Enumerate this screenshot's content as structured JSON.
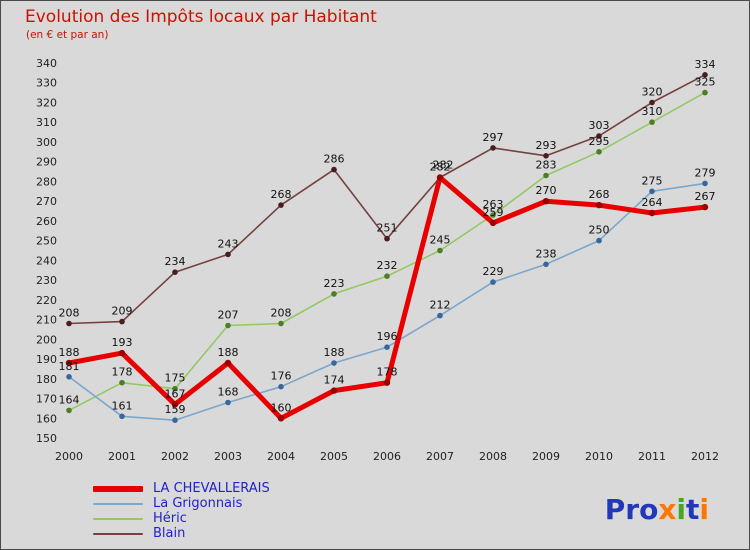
{
  "title": "Evolution des Impôts locaux par Habitant",
  "subtitle": "(en € et par an)",
  "colors": {
    "background": "#d9d9d9",
    "title": "#cc1100",
    "subtitle": "#cc1100",
    "legend_text": "#2222cc",
    "tick_text": "#222222",
    "value_label": "#111111"
  },
  "chart_data": {
    "type": "line",
    "x": [
      "2000",
      "2001",
      "2002",
      "2003",
      "2004",
      "2005",
      "2006",
      "2007",
      "2008",
      "2009",
      "2010",
      "2011",
      "2012"
    ],
    "ylim": [
      150,
      340
    ],
    "ytick_step": 10,
    "grid": false,
    "legend_position": "bottom-left",
    "series": [
      {
        "name": "LA CHEVALLERAIS",
        "color": "#e80000",
        "marker_color": "#9a0000",
        "line_width": 5,
        "values": [
          188,
          193,
          167,
          188,
          160,
          174,
          178,
          282,
          259,
          270,
          268,
          264,
          267
        ]
      },
      {
        "name": "La Grigonnais",
        "color": "#7aa7cc",
        "marker_color": "#39679b",
        "line_width": 1.6,
        "values": [
          181,
          161,
          159,
          168,
          176,
          188,
          196,
          212,
          229,
          238,
          250,
          275,
          279
        ]
      },
      {
        "name": "Héric",
        "color": "#93c963",
        "marker_color": "#4d7d26",
        "line_width": 1.6,
        "values": [
          164,
          178,
          175,
          207,
          208,
          223,
          232,
          245,
          263,
          283,
          295,
          310,
          325
        ]
      },
      {
        "name": "Blain",
        "color": "#744040",
        "marker_color": "#46201f",
        "line_width": 1.6,
        "values": [
          208,
          209,
          234,
          243,
          268,
          286,
          251,
          282,
          297,
          293,
          303,
          320,
          334
        ]
      }
    ]
  },
  "logo": {
    "letters": [
      {
        "ch": "P",
        "color": "#2238b8"
      },
      {
        "ch": "r",
        "color": "#2238b8"
      },
      {
        "ch": "o",
        "color": "#2238b8"
      },
      {
        "ch": "x",
        "color": "#ff7700"
      },
      {
        "ch": "i",
        "color": "#44a820"
      },
      {
        "ch": "t",
        "color": "#2238b8"
      },
      {
        "ch": "i",
        "color": "#ff7700"
      }
    ]
  }
}
